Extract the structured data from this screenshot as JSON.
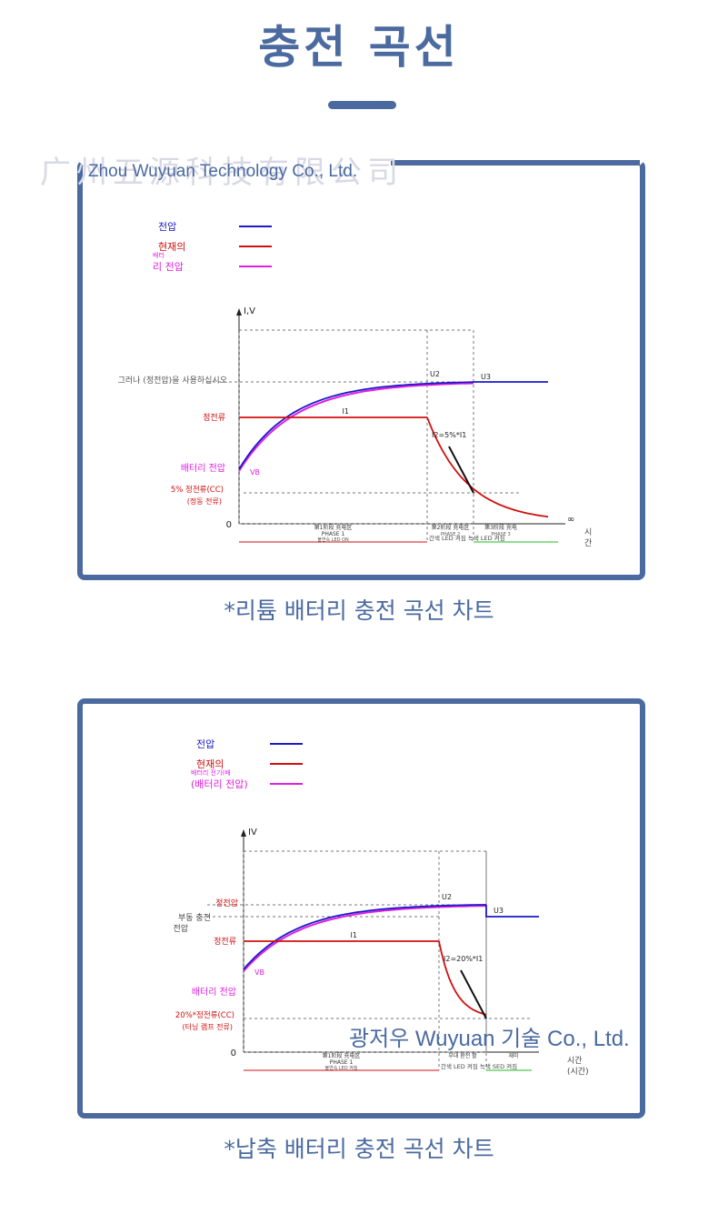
{
  "page": {
    "title": "충전 곡선",
    "watermark_top": "Zhou Wuyuan Technology Co., Ltd.",
    "watermark_top_faint": "广州五源科技有限公司",
    "watermark_bottom": "광저우 Wuyuan 기술 Co., Ltd."
  },
  "colors": {
    "accent": "#4a6aa0",
    "voltage": "#1a1ac8",
    "current": "#d01010",
    "battery_voltage": "#e020e0",
    "green": "#22bb22"
  },
  "chart_data": [
    {
      "type": "line",
      "caption": "*리튬 배터리 충전 곡선 차트",
      "legend": [
        {
          "label": "전압",
          "color": "#1a1ac8"
        },
        {
          "label": "현재의",
          "color": "#d01010"
        },
        {
          "label_small": "배터",
          "label": "리 전압",
          "color": "#e020e0"
        }
      ],
      "axis": {
        "y_label": "I,V",
        "x_origin": "0",
        "x_end": "∞",
        "time_label_1": "시",
        "time_label_2": "간"
      },
      "y_labels": {
        "const_voltage": "그러나 (정전압)을 사용하십시오",
        "const_current": "정전류",
        "battery_voltage": "배터리 전압",
        "pct_current": "5% 정전류(CC)",
        "pct_current_sub": "(정동 전류)"
      },
      "point_labels": {
        "u2": "U2",
        "u3": "U3",
        "i1": "I1",
        "i2": "I2=5%*I1",
        "vb": "VB"
      },
      "phase_labels": {
        "p1_line1": "第1阶段 充电区",
        "p1_line2": "PHASE 1",
        "p1_line3": "불연속 LED ON",
        "p2_line1": "第2阶段 充电区",
        "p2_line2": "PHASE 2",
        "p3_line1": "第3阶段 充电",
        "p3_line2": "PHASE 3",
        "bottom_led": "간색 LED 켜짐 녹색 LED 켜짐"
      }
    },
    {
      "type": "line",
      "caption": "*납축 배터리 충전 곡선 차트",
      "legend": [
        {
          "label": "전압",
          "color": "#1a1ac8"
        },
        {
          "label": "현재의",
          "color": "#d01010"
        },
        {
          "label_small": "배터리 전기(배",
          "label": "(배터리 전압)",
          "color": "#e020e0"
        }
      ],
      "axis": {
        "y_label": "IV",
        "x_origin": "0",
        "time_label_1": "시간",
        "time_label_2": "(시간)"
      },
      "y_labels": {
        "const_voltage": "정전압",
        "float_charge": "부동 충전",
        "float_charge_2": "전압",
        "const_current": "정전류",
        "battery_voltage": "배터리 전압",
        "pct_current": "20%*정전류(CC)",
        "pct_current_sub": "(터닝 램프 전류)"
      },
      "point_labels": {
        "u2": "U2",
        "u3": "U3",
        "i1": "I1",
        "i2": "I2=20%*I1",
        "vb": "VB"
      },
      "phase_labels": {
        "p1_line1": "第1阶段 充电区",
        "p1_line2": "PHASE 1",
        "p1_line3": "불연속 LED 켜짐",
        "p2_line1": "부대 환전 활",
        "p3_line1": "재미",
        "bottom_led": "간색 LED 켜짐 녹색 SED 켜짐"
      }
    }
  ]
}
